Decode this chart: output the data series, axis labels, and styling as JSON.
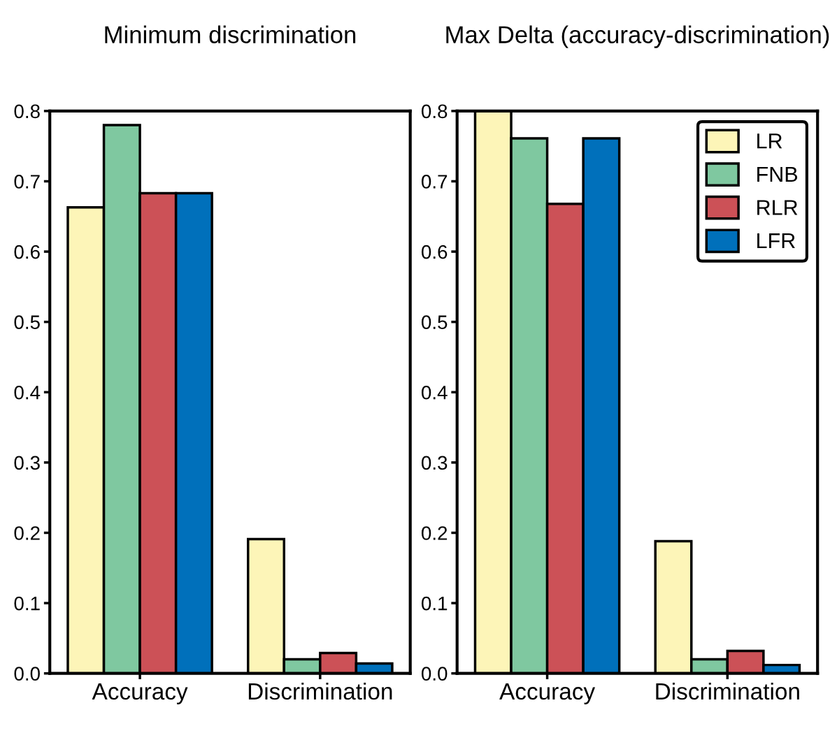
{
  "chart_data": [
    {
      "type": "bar",
      "title": "Minimum discrimination",
      "categories": [
        "Accuracy",
        "Discrimination"
      ],
      "series": [
        {
          "color": "#fdf5b8",
          "values": [
            0.663,
            0.191
          ]
        },
        {
          "color": "#7fc8a0",
          "values": [
            0.78,
            0.02
          ]
        },
        {
          "color": "#cc5157",
          "values": [
            0.683,
            0.029
          ]
        },
        {
          "color": "#0070bb",
          "values": [
            0.683,
            0.014
          ]
        }
      ],
      "ylim": [
        0,
        0.8
      ],
      "yticks": [
        {
          "value": 0,
          "label": "0.0"
        },
        0.1,
        0.2,
        0.3,
        0.4,
        0.5,
        0.6,
        0.7,
        0.8
      ],
      "grid": false
    },
    {
      "type": "bar",
      "title": "Max Delta (accuracy-discrimination)",
      "categories": [
        "Accuracy",
        "Discrimination"
      ],
      "series": [
        {
          "name": "LR",
          "color": "#fdf5b8",
          "values": [
            0.8,
            0.188
          ]
        },
        {
          "name": "FNB",
          "color": "#7fc8a0",
          "values": [
            0.761,
            0.02
          ]
        },
        {
          "name": "RLR",
          "color": "#cc5157",
          "values": [
            0.668,
            0.032
          ]
        },
        {
          "name": "LFR",
          "color": "#0070bb",
          "values": [
            0.761,
            0.012
          ]
        }
      ],
      "ylim": [
        0,
        0.8
      ],
      "yticks": [
        {
          "value": 0,
          "label": "0.0"
        },
        0.1,
        0.2,
        0.3,
        0.4,
        0.5,
        0.6,
        0.7,
        0.8
      ],
      "grid": false,
      "legend": "top right"
    }
  ]
}
